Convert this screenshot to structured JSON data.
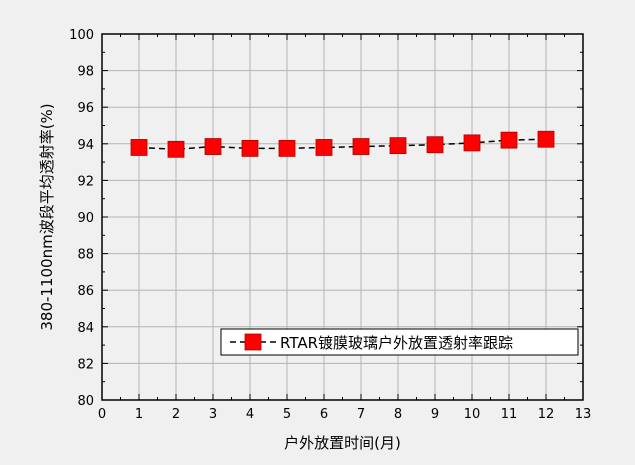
{
  "chart_data": {
    "type": "line",
    "title": "",
    "xlabel": "户外放置时间(月)",
    "ylabel": "380-1100nm波段平均透射率(%)",
    "xlim": [
      0,
      13
    ],
    "ylim": [
      80,
      100
    ],
    "x_ticks": [
      "0",
      "1",
      "2",
      "3",
      "4",
      "5",
      "6",
      "7",
      "8",
      "9",
      "10",
      "11",
      "12",
      "13"
    ],
    "y_ticks": [
      "80",
      "82",
      "84",
      "86",
      "88",
      "90",
      "92",
      "94",
      "96",
      "98",
      "100"
    ],
    "grid": true,
    "legend_position": "bottom-right",
    "series": [
      {
        "name": "RTAR镀膜玻璃户外放置透射率跟踪",
        "color": "#ff0000",
        "line_color": "#000000",
        "marker": "square",
        "line_style": "dashed",
        "x": [
          1,
          2,
          3,
          4,
          5,
          6,
          7,
          8,
          9,
          10,
          11,
          12
        ],
        "values": [
          93.8,
          93.7,
          93.85,
          93.75,
          93.75,
          93.8,
          93.85,
          93.9,
          93.95,
          94.05,
          94.2,
          94.25
        ]
      }
    ]
  }
}
